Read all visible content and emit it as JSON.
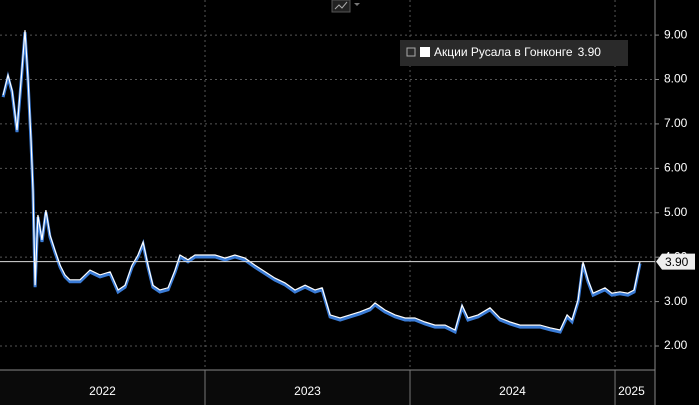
{
  "chart_data": {
    "type": "line",
    "series": [
      {
        "name": "Акции Русала в Гонконге",
        "color": "#ffffff",
        "shade": "#3a7bd5",
        "x": [
          2022.015,
          2022.039,
          2022.059,
          2022.083,
          2022.107,
          2022.122,
          2022.137,
          2022.151,
          2022.161,
          2022.171,
          2022.185,
          2022.205,
          2022.224,
          2022.244,
          2022.268,
          2022.293,
          2022.317,
          2022.341,
          2022.39,
          2022.439,
          2022.488,
          2022.537,
          2022.576,
          2022.61,
          2022.644,
          2022.673,
          2022.698,
          2022.722,
          2022.746,
          2022.78,
          2022.82,
          2022.854,
          2022.878,
          2022.917,
          2022.951,
          2023.0,
          2023.049,
          2023.098,
          2023.146,
          2023.195,
          2023.244,
          2023.293,
          2023.341,
          2023.39,
          2023.439,
          2023.488,
          2023.537,
          2023.571,
          2023.61,
          2023.659,
          2023.707,
          2023.756,
          2023.805,
          2023.829,
          2023.878,
          2023.927,
          2023.976,
          2024.024,
          2024.073,
          2024.122,
          2024.171,
          2024.22,
          2024.254,
          2024.283,
          2024.332,
          2024.39,
          2024.439,
          2024.488,
          2024.537,
          2024.585,
          2024.634,
          2024.683,
          2024.732,
          2024.766,
          2024.79,
          2024.82,
          2024.844,
          2024.868,
          2024.893,
          2024.927,
          2024.951,
          2024.985,
          2025.024,
          2025.063,
          2025.093,
          2025.122
        ],
        "values": [
          7.65,
          8.1,
          7.76,
          6.86,
          8.21,
          9.11,
          7.99,
          6.64,
          5.51,
          3.37,
          4.95,
          4.39,
          5.06,
          4.5,
          4.16,
          3.82,
          3.6,
          3.49,
          3.49,
          3.71,
          3.6,
          3.67,
          3.26,
          3.37,
          3.82,
          4.05,
          4.34,
          3.82,
          3.37,
          3.26,
          3.31,
          3.71,
          4.05,
          3.94,
          4.05,
          4.05,
          4.05,
          3.98,
          4.05,
          3.98,
          3.82,
          3.67,
          3.53,
          3.42,
          3.26,
          3.37,
          3.26,
          3.31,
          2.7,
          2.63,
          2.7,
          2.77,
          2.86,
          2.97,
          2.81,
          2.7,
          2.63,
          2.63,
          2.54,
          2.47,
          2.47,
          2.36,
          2.92,
          2.63,
          2.7,
          2.86,
          2.63,
          2.54,
          2.47,
          2.47,
          2.47,
          2.41,
          2.36,
          2.7,
          2.59,
          3.04,
          3.89,
          3.49,
          3.19,
          3.26,
          3.31,
          3.19,
          3.22,
          3.19,
          3.26,
          3.9
        ]
      }
    ],
    "last_value": {
      "value": 3.9,
      "label": "3.90"
    },
    "xlim": [
      2022.0,
      2025.195
    ],
    "xticks": [
      {
        "value": 2022.5,
        "label": "2022"
      },
      {
        "value": 2023.5,
        "label": "2023"
      },
      {
        "value": 2024.5,
        "label": "2024"
      },
      {
        "value": 2025.08,
        "label": "2025"
      }
    ],
    "xgrid": [
      2023,
      2024,
      2025
    ],
    "ylim": [
      1.46,
      9.79
    ],
    "yticks": [
      {
        "value": 2,
        "label": "2.00"
      },
      {
        "value": 3,
        "label": "3.00"
      },
      {
        "value": 4,
        "label": "4.00"
      },
      {
        "value": 5,
        "label": "5.00"
      },
      {
        "value": 6,
        "label": "6.00"
      },
      {
        "value": 7,
        "label": "7.00"
      },
      {
        "value": 8,
        "label": "8.00"
      },
      {
        "value": 9,
        "label": "9.00"
      }
    ],
    "grid": true
  }
}
